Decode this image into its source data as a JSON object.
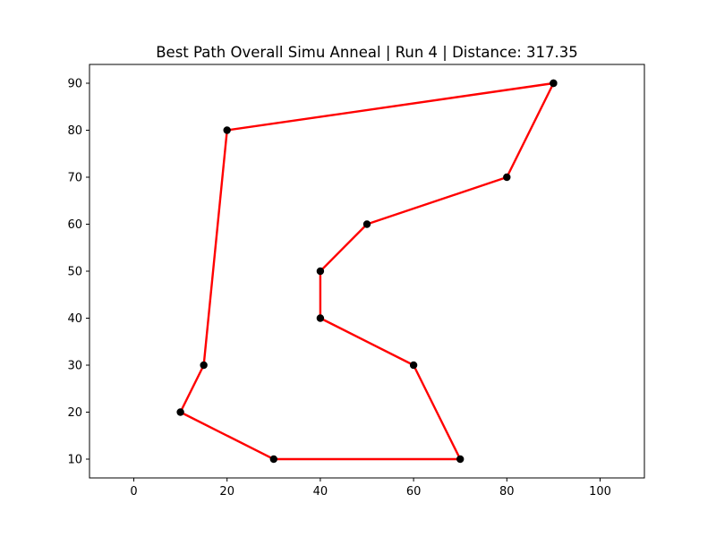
{
  "chart_data": {
    "type": "line",
    "title": "Best Path Overall Simu Anneal | Run 4 | Distance: 317.35",
    "xlabel": "",
    "ylabel": "",
    "xlim": [
      -9.5,
      109.5
    ],
    "ylim": [
      6,
      94
    ],
    "xticks": [
      0,
      20,
      40,
      60,
      80,
      100
    ],
    "yticks": [
      10,
      20,
      30,
      40,
      50,
      60,
      70,
      80,
      90
    ],
    "xtick_labels": [
      "0",
      "20",
      "40",
      "60",
      "80",
      "100"
    ],
    "ytick_labels": [
      "10",
      "20",
      "30",
      "40",
      "50",
      "60",
      "70",
      "80",
      "90"
    ],
    "grid": false,
    "legend": "none",
    "path_color": "#ff0000",
    "point_color": "#000000",
    "points": [
      {
        "x": 90,
        "y": 90
      },
      {
        "x": 80,
        "y": 70
      },
      {
        "x": 50,
        "y": 60
      },
      {
        "x": 40,
        "y": 50
      },
      {
        "x": 40,
        "y": 40
      },
      {
        "x": 60,
        "y": 30
      },
      {
        "x": 70,
        "y": 10
      },
      {
        "x": 30,
        "y": 10
      },
      {
        "x": 10,
        "y": 20
      },
      {
        "x": 15,
        "y": 30
      },
      {
        "x": 20,
        "y": 80
      },
      {
        "x": 90,
        "y": 90
      }
    ]
  }
}
